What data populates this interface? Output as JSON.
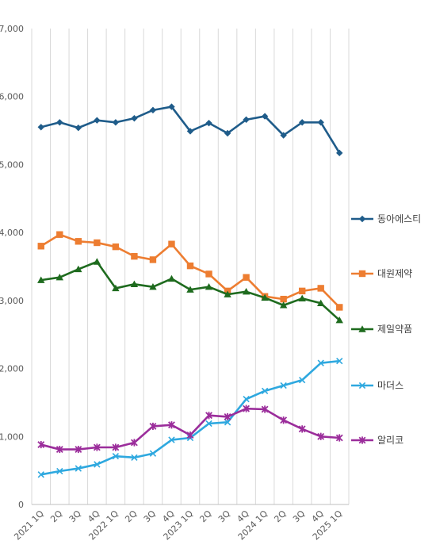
{
  "chart_data": {
    "type": "line",
    "categories": [
      "2021 1Q",
      "2Q",
      "3Q",
      "4Q",
      "2022 1Q",
      "2Q",
      "3Q",
      "4Q",
      "2023 1Q",
      "2Q",
      "3Q",
      "4Q",
      "2024 1Q",
      "2Q",
      "3Q",
      "4Q",
      "2025 1Q"
    ],
    "ylim": [
      0,
      7000
    ],
    "yticks": [
      0,
      1000,
      2000,
      3000,
      4000,
      5000,
      6000,
      7000
    ],
    "ytick_labels": [
      "0",
      "1,000",
      "2,000",
      "3,000",
      "4,000",
      "5,000",
      "6,000",
      "7,000"
    ],
    "grid": {
      "vertical": true,
      "horizontal": false
    },
    "legend_position": "right",
    "series": [
      {
        "name": "동아에스티",
        "color": "#1F5C8A",
        "marker": "diamond",
        "values": [
          5550,
          5620,
          5540,
          5650,
          5620,
          5680,
          5800,
          5850,
          5490,
          5610,
          5460,
          5660,
          5710,
          5430,
          5620,
          5620,
          5170
        ]
      },
      {
        "name": "대원제약",
        "color": "#ED7D31",
        "marker": "square",
        "values": [
          3800,
          3970,
          3870,
          3850,
          3790,
          3650,
          3600,
          3830,
          3510,
          3390,
          3140,
          3340,
          3060,
          3020,
          3140,
          3180,
          2900
        ]
      },
      {
        "name": "제일약품",
        "color": "#1E6B1E",
        "marker": "triangle",
        "values": [
          3300,
          3340,
          3460,
          3570,
          3180,
          3240,
          3200,
          3320,
          3160,
          3200,
          3090,
          3130,
          3040,
          2930,
          3030,
          2960,
          2710
        ]
      },
      {
        "name": "마더스",
        "color": "#2EA8DF",
        "marker": "x",
        "values": [
          440,
          490,
          530,
          590,
          710,
          690,
          750,
          950,
          980,
          1190,
          1210,
          1550,
          1670,
          1750,
          1830,
          2080,
          2110
        ]
      },
      {
        "name": "알리코",
        "color": "#9B2D9B",
        "marker": "star",
        "values": [
          880,
          810,
          810,
          840,
          840,
          910,
          1150,
          1170,
          1020,
          1310,
          1290,
          1410,
          1400,
          1240,
          1110,
          1000,
          980
        ]
      }
    ]
  }
}
